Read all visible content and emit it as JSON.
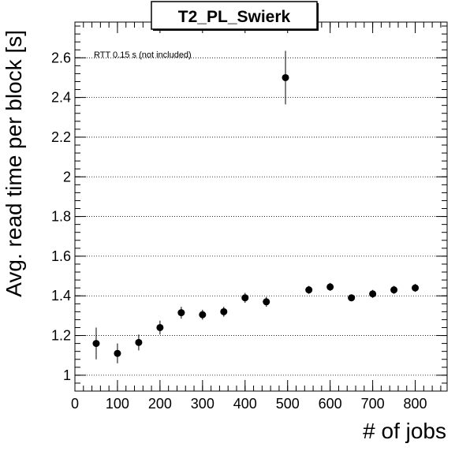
{
  "chart_data": {
    "type": "scatter",
    "title": "T2_PL_Swierk",
    "xlabel": "# of jobs",
    "ylabel": "Avg. read time per block [s]",
    "annotation": "RTT 0.15 s (not included)",
    "xlim": [
      0,
      875
    ],
    "ylim": [
      0.92,
      2.78
    ],
    "x_ticks": [
      0,
      100,
      200,
      300,
      400,
      500,
      600,
      700,
      800
    ],
    "y_ticks": [
      1,
      1.2,
      1.4,
      1.6,
      1.8,
      2,
      2.2,
      2.4,
      2.6
    ],
    "y_tick_labels": [
      "1",
      "1.2",
      "1.4",
      "1.6",
      "1.8",
      "2",
      "2.2",
      "2.4",
      "2.6"
    ],
    "grid": "horizontal",
    "marker_color": "#000000",
    "points": [
      {
        "x": 50,
        "y": 1.16,
        "err": 0.08
      },
      {
        "x": 100,
        "y": 1.11,
        "err": 0.05
      },
      {
        "x": 150,
        "y": 1.165,
        "err": 0.04
      },
      {
        "x": 200,
        "y": 1.24,
        "err": 0.035
      },
      {
        "x": 250,
        "y": 1.315,
        "err": 0.03
      },
      {
        "x": 300,
        "y": 1.305,
        "err": 0.025
      },
      {
        "x": 350,
        "y": 1.32,
        "err": 0.025
      },
      {
        "x": 400,
        "y": 1.39,
        "err": 0.025
      },
      {
        "x": 450,
        "y": 1.37,
        "err": 0.025
      },
      {
        "x": 495,
        "y": 2.5,
        "err": 0.135
      },
      {
        "x": 550,
        "y": 1.43,
        "err": 0.02
      },
      {
        "x": 600,
        "y": 1.445,
        "err": 0.02
      },
      {
        "x": 650,
        "y": 1.39,
        "err": 0.015
      },
      {
        "x": 700,
        "y": 1.41,
        "err": 0.02
      },
      {
        "x": 750,
        "y": 1.43,
        "err": 0.02
      },
      {
        "x": 800,
        "y": 1.44,
        "err": 0.02
      }
    ]
  }
}
